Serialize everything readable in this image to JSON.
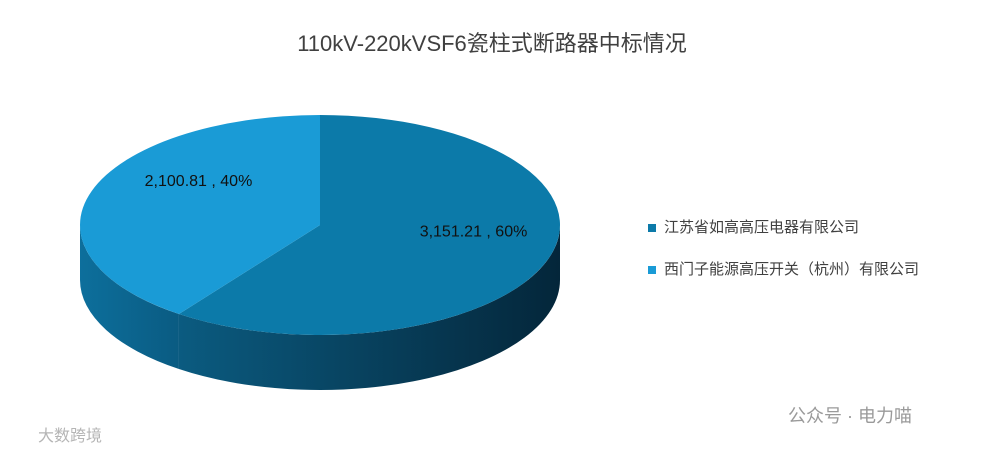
{
  "chart_data": {
    "type": "pie3d",
    "title": "110kV-220kVSF6瓷柱式断路器中标情况",
    "categories": [
      "江苏省如高高压电器有限公司",
      "西门子能源高压开关（杭州）有限公司"
    ],
    "values": [
      3151.21,
      2100.81
    ],
    "value_labels": [
      "3,151.21 , 60%",
      "2,100.81 , 40%"
    ],
    "colors": [
      "#0c7aa9",
      "#1a9bd6"
    ],
    "legend": "right"
  },
  "watermarks": [
    "公众号 · 电力喵",
    "大数跨境"
  ]
}
